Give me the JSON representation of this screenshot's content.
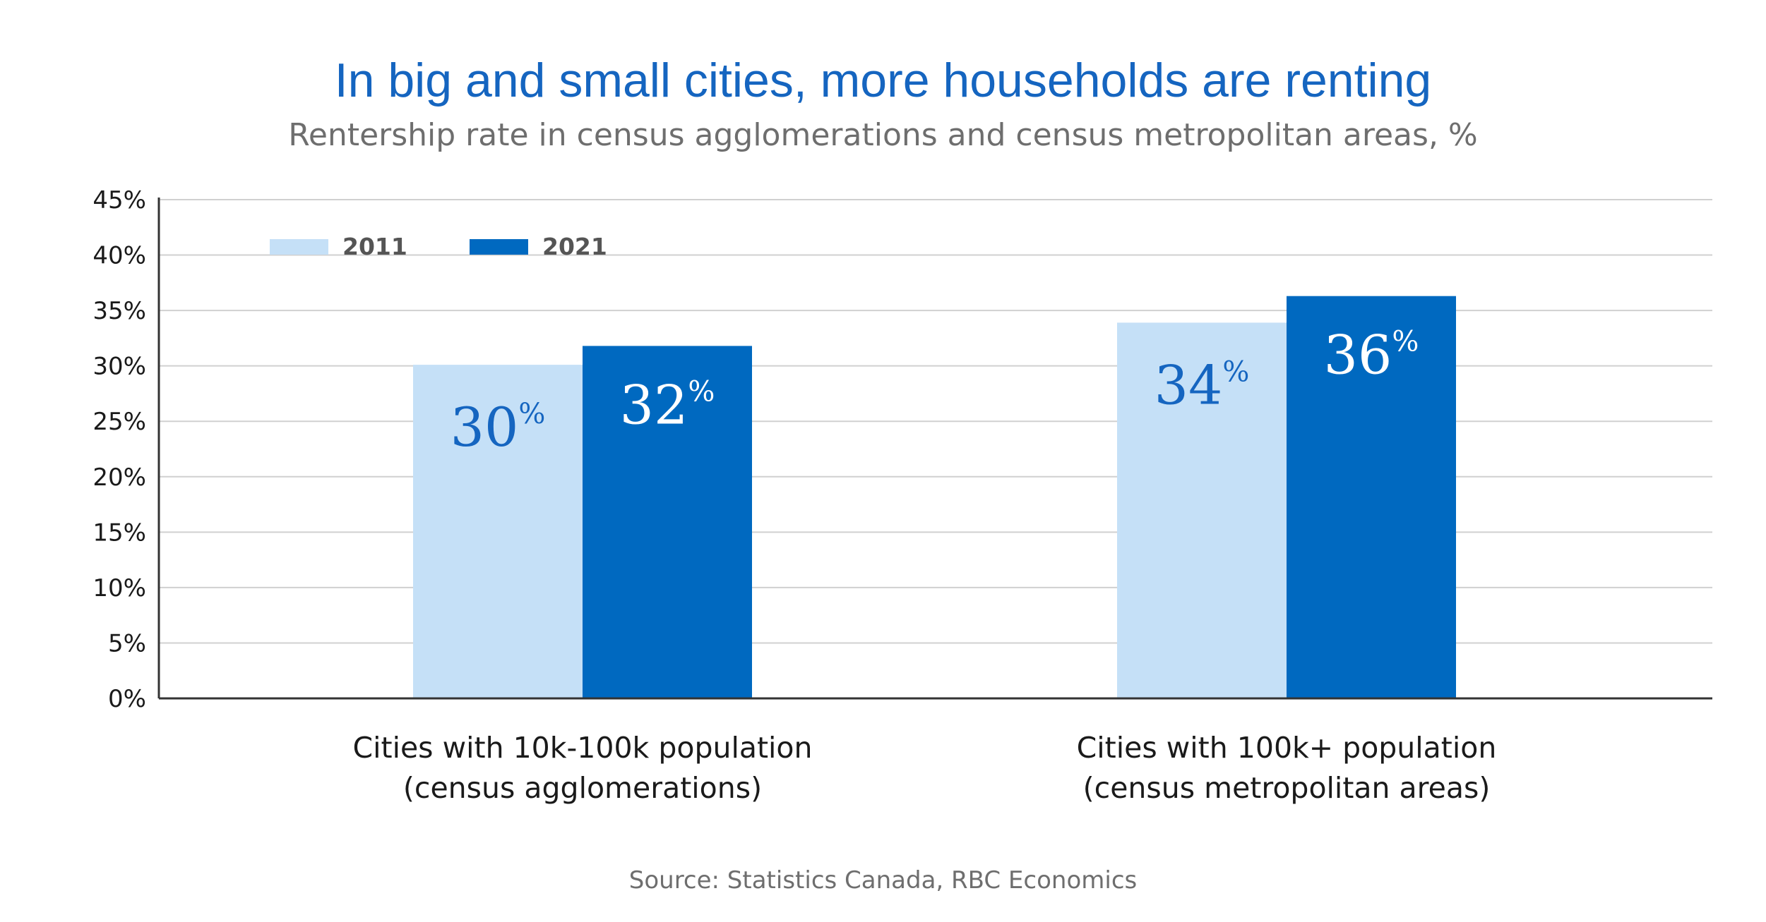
{
  "title": "In big and small cities, more households are renting",
  "subtitle": "Rentership rate in census agglomerations and census metropolitan areas, %",
  "source": "Source: Statistics Canada, RBC Economics",
  "colors": {
    "title": "#1565c0",
    "series_2011": "#c5e0f7",
    "series_2021": "#0069c0",
    "label_on_light": "#1565c0",
    "label_on_dark": "#ffffff",
    "grid": "#d0d0d0",
    "axis": "#333333"
  },
  "chart_data": {
    "type": "bar",
    "categories": [
      [
        "Cities with 10k-100k population",
        "(census agglomerations)"
      ],
      [
        "Cities with 100k+ population",
        "(census metropolitan areas)"
      ]
    ],
    "series": [
      {
        "name": "2011",
        "values": [
          30.1,
          33.9
        ],
        "labels": [
          "30",
          "34"
        ]
      },
      {
        "name": "2021",
        "values": [
          31.8,
          36.3
        ],
        "labels": [
          "32",
          "36"
        ]
      }
    ],
    "label_unit": "%",
    "ylim": [
      0,
      45
    ],
    "yticks": [
      "0%",
      "5%",
      "10%",
      "15%",
      "20%",
      "25%",
      "30%",
      "35%",
      "40%",
      "45%"
    ],
    "grid": true,
    "legend_position": "top-left"
  }
}
